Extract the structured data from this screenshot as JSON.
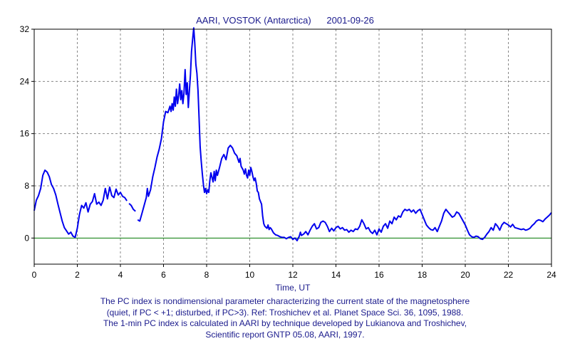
{
  "chart_data": {
    "type": "line",
    "title": "AARI, VOSTOK (Antarctica)      2001-09-26",
    "xlabel": "Time, UT",
    "ylabel": "",
    "xlim": [
      0,
      24
    ],
    "ylim": [
      -4,
      32
    ],
    "x_ticks": [
      "0",
      "2",
      "4",
      "6",
      "8",
      "10",
      "12",
      "14",
      "16",
      "18",
      "20",
      "22",
      "24"
    ],
    "y_ticks": [
      "32",
      "24",
      "16",
      "8",
      "0"
    ],
    "grid": true,
    "line_color": "#0000ee",
    "zero_line_color": "#007700",
    "series": [
      {
        "name": "",
        "segments": [
          [
            [
              0,
              4.2
            ],
            [
              0.1,
              5.8
            ],
            [
              0.2,
              6.5
            ],
            [
              0.3,
              7.6
            ],
            [
              0.4,
              9.6
            ],
            [
              0.5,
              10.4
            ],
            [
              0.6,
              10.1
            ],
            [
              0.7,
              9.4
            ],
            [
              0.8,
              8.2
            ],
            [
              0.9,
              7.6
            ],
            [
              1.0,
              6.6
            ],
            [
              1.1,
              5.2
            ],
            [
              1.2,
              3.9
            ],
            [
              1.3,
              2.6
            ],
            [
              1.4,
              1.6
            ],
            [
              1.5,
              1.1
            ],
            [
              1.6,
              0.6
            ],
            [
              1.7,
              0.9
            ],
            [
              1.8,
              0.3
            ],
            [
              1.9,
              0.1
            ],
            [
              2.0,
              1.5
            ],
            [
              2.1,
              3.6
            ],
            [
              2.2,
              5.0
            ],
            [
              2.3,
              4.6
            ],
            [
              2.4,
              5.4
            ],
            [
              2.5,
              4.0
            ],
            [
              2.6,
              5.2
            ],
            [
              2.7,
              5.6
            ],
            [
              2.8,
              6.8
            ],
            [
              2.9,
              5.2
            ],
            [
              3.0,
              5.5
            ],
            [
              3.1,
              5.0
            ],
            [
              3.2,
              5.8
            ],
            [
              3.3,
              7.6
            ],
            [
              3.4,
              6.0
            ],
            [
              3.5,
              7.8
            ],
            [
              3.6,
              6.5
            ],
            [
              3.7,
              6.2
            ],
            [
              3.8,
              7.5
            ],
            [
              3.9,
              6.6
            ],
            [
              4.0,
              7.0
            ],
            [
              4.1,
              6.4
            ],
            [
              4.2,
              6.2
            ],
            [
              4.3,
              5.7
            ]
          ],
          [
            [
              4.4,
              5.3
            ],
            [
              4.5,
              5.0
            ],
            [
              4.6,
              4.4
            ],
            [
              4.7,
              4.1
            ]
          ],
          [
            [
              4.8,
              2.8
            ],
            [
              4.9,
              2.6
            ],
            [
              5.0,
              3.8
            ],
            [
              5.1,
              5.0
            ],
            [
              5.2,
              6.2
            ],
            [
              5.25,
              7.6
            ],
            [
              5.3,
              6.4
            ],
            [
              5.4,
              7.4
            ],
            [
              5.5,
              9.4
            ],
            [
              5.6,
              10.8
            ],
            [
              5.7,
              12.4
            ],
            [
              5.8,
              13.6
            ],
            [
              5.9,
              15.2
            ],
            [
              6.0,
              17.8
            ],
            [
              6.1,
              19.4
            ],
            [
              6.2,
              19.2
            ],
            [
              6.3,
              20.2
            ],
            [
              6.35,
              19.4
            ],
            [
              6.4,
              20.6
            ],
            [
              6.45,
              19.6
            ],
            [
              6.5,
              21.6
            ],
            [
              6.55,
              20.2
            ],
            [
              6.6,
              22.8
            ],
            [
              6.65,
              20.6
            ],
            [
              6.7,
              21.8
            ],
            [
              6.75,
              23.6
            ],
            [
              6.8,
              21.2
            ],
            [
              6.85,
              22.6
            ],
            [
              6.9,
              20.6
            ],
            [
              6.95,
              22.2
            ],
            [
              7.0,
              25.8
            ],
            [
              7.05,
              22.0
            ],
            [
              7.1,
              23.8
            ],
            [
              7.15,
              20.0
            ],
            [
              7.2,
              22.6
            ],
            [
              7.25,
              25.0
            ],
            [
              7.3,
              28.6
            ],
            [
              7.35,
              30.4
            ],
            [
              7.4,
              32.2
            ],
            [
              7.45,
              29.8
            ],
            [
              7.5,
              26.6
            ],
            [
              7.55,
              25.2
            ],
            [
              7.6,
              22.6
            ],
            [
              7.65,
              18.4
            ],
            [
              7.7,
              14.0
            ],
            [
              7.75,
              11.8
            ],
            [
              7.8,
              9.8
            ],
            [
              7.85,
              8.2
            ],
            [
              7.9,
              7.0
            ],
            [
              7.95,
              7.6
            ],
            [
              8.0,
              6.8
            ],
            [
              8.05,
              7.4
            ],
            [
              8.1,
              7.0
            ],
            [
              8.15,
              8.8
            ],
            [
              8.2,
              10.0
            ],
            [
              8.3,
              8.6
            ],
            [
              8.35,
              10.2
            ],
            [
              8.4,
              8.8
            ],
            [
              8.45,
              10.4
            ],
            [
              8.5,
              9.6
            ],
            [
              8.6,
              10.8
            ],
            [
              8.7,
              12.2
            ],
            [
              8.8,
              12.8
            ],
            [
              8.9,
              12.0
            ],
            [
              9.0,
              13.8
            ],
            [
              9.1,
              14.2
            ],
            [
              9.2,
              13.8
            ],
            [
              9.3,
              13.0
            ],
            [
              9.4,
              12.6
            ],
            [
              9.5,
              11.6
            ],
            [
              9.55,
              12.2
            ],
            [
              9.6,
              11.0
            ],
            [
              9.7,
              10.4
            ],
            [
              9.75,
              9.8
            ],
            [
              9.8,
              10.6
            ],
            [
              9.85,
              9.6
            ],
            [
              9.9,
              9.2
            ],
            [
              9.95,
              10.4
            ],
            [
              10.0,
              9.6
            ],
            [
              10.05,
              10.8
            ],
            [
              10.1,
              10.2
            ],
            [
              10.15,
              9.4
            ],
            [
              10.2,
              8.8
            ],
            [
              10.25,
              9.2
            ],
            [
              10.3,
              8.4
            ],
            [
              10.35,
              7.2
            ],
            [
              10.4,
              7.0
            ],
            [
              10.45,
              6.0
            ],
            [
              10.5,
              5.6
            ],
            [
              10.55,
              5.2
            ],
            [
              10.6,
              3.4
            ],
            [
              10.65,
              2.2
            ],
            [
              10.7,
              1.8
            ],
            [
              10.8,
              1.5
            ],
            [
              10.85,
              2.0
            ],
            [
              10.9,
              1.3
            ],
            [
              10.95,
              1.6
            ],
            [
              11.0,
              1.4
            ],
            [
              11.1,
              0.8
            ],
            [
              11.2,
              0.5
            ],
            [
              11.3,
              0.4
            ],
            [
              11.4,
              0.2
            ],
            [
              11.5,
              0.1
            ],
            [
              11.6,
              0.1
            ],
            [
              11.7,
              -0.1
            ],
            [
              11.8,
              0.1
            ],
            [
              11.9,
              0.2
            ],
            [
              12.0,
              -0.2
            ],
            [
              12.1,
              0.0
            ],
            [
              12.2,
              -0.4
            ],
            [
              12.3,
              0.3
            ],
            [
              12.35,
              0.9
            ],
            [
              12.4,
              0.4
            ],
            [
              12.5,
              0.6
            ],
            [
              12.6,
              1.0
            ],
            [
              12.7,
              0.5
            ],
            [
              12.8,
              1.2
            ],
            [
              12.9,
              1.8
            ],
            [
              13.0,
              2.2
            ],
            [
              13.1,
              1.4
            ],
            [
              13.2,
              1.6
            ],
            [
              13.3,
              2.4
            ],
            [
              13.4,
              2.6
            ],
            [
              13.5,
              2.4
            ],
            [
              13.6,
              1.8
            ],
            [
              13.7,
              1.0
            ],
            [
              13.8,
              1.5
            ],
            [
              13.9,
              1.1
            ],
            [
              14.0,
              1.6
            ],
            [
              14.1,
              1.8
            ],
            [
              14.2,
              1.4
            ],
            [
              14.3,
              1.6
            ],
            [
              14.4,
              1.2
            ],
            [
              14.5,
              1.3
            ],
            [
              14.6,
              0.9
            ],
            [
              14.7,
              1.2
            ],
            [
              14.8,
              1.0
            ],
            [
              14.9,
              1.4
            ],
            [
              15.0,
              1.3
            ],
            [
              15.1,
              1.8
            ],
            [
              15.2,
              2.8
            ],
            [
              15.3,
              2.2
            ],
            [
              15.4,
              1.4
            ],
            [
              15.5,
              1.6
            ],
            [
              15.6,
              1.0
            ],
            [
              15.7,
              0.7
            ],
            [
              15.8,
              1.2
            ],
            [
              15.9,
              0.5
            ],
            [
              16.0,
              1.4
            ],
            [
              16.1,
              0.9
            ],
            [
              16.2,
              1.8
            ],
            [
              16.3,
              2.2
            ],
            [
              16.4,
              1.5
            ],
            [
              16.5,
              2.6
            ],
            [
              16.6,
              2.2
            ],
            [
              16.7,
              3.2
            ],
            [
              16.8,
              2.8
            ],
            [
              16.9,
              3.4
            ],
            [
              17.0,
              3.2
            ],
            [
              17.1,
              4.0
            ],
            [
              17.2,
              4.4
            ],
            [
              17.3,
              4.2
            ],
            [
              17.4,
              4.4
            ],
            [
              17.5,
              4.0
            ],
            [
              17.6,
              4.3
            ],
            [
              17.7,
              3.8
            ],
            [
              17.8,
              4.2
            ],
            [
              17.9,
              4.4
            ],
            [
              18.0,
              3.6
            ],
            [
              18.1,
              2.8
            ],
            [
              18.2,
              2.0
            ],
            [
              18.3,
              1.6
            ],
            [
              18.4,
              1.3
            ],
            [
              18.5,
              1.2
            ],
            [
              18.6,
              1.6
            ],
            [
              18.7,
              1.0
            ],
            [
              18.8,
              1.8
            ],
            [
              18.9,
              2.6
            ],
            [
              19.0,
              3.8
            ],
            [
              19.1,
              4.4
            ],
            [
              19.2,
              4.0
            ],
            [
              19.3,
              3.6
            ],
            [
              19.4,
              3.2
            ],
            [
              19.5,
              3.4
            ],
            [
              19.6,
              4.0
            ],
            [
              19.7,
              3.8
            ],
            [
              19.8,
              3.2
            ],
            [
              19.9,
              2.6
            ],
            [
              20.0,
              2.0
            ],
            [
              20.1,
              1.2
            ],
            [
              20.2,
              0.5
            ],
            [
              20.3,
              0.2
            ],
            [
              20.4,
              0.1
            ],
            [
              20.5,
              0.3
            ],
            [
              20.6,
              0.2
            ],
            [
              20.7,
              -0.1
            ],
            [
              20.8,
              -0.2
            ],
            [
              20.9,
              0.1
            ],
            [
              21.0,
              0.6
            ],
            [
              21.1,
              1.0
            ],
            [
              21.2,
              1.6
            ],
            [
              21.3,
              1.2
            ],
            [
              21.4,
              2.2
            ],
            [
              21.5,
              1.8
            ],
            [
              21.6,
              1.2
            ],
            [
              21.7,
              2.0
            ],
            [
              21.8,
              2.4
            ],
            [
              21.9,
              2.2
            ],
            [
              22.0,
              2.0
            ],
            [
              22.1,
              1.7
            ],
            [
              22.2,
              2.1
            ],
            [
              22.3,
              1.6
            ],
            [
              22.4,
              1.5
            ],
            [
              22.5,
              1.4
            ],
            [
              22.6,
              1.3
            ],
            [
              22.7,
              1.4
            ],
            [
              22.8,
              1.2
            ],
            [
              22.9,
              1.3
            ],
            [
              23.0,
              1.5
            ],
            [
              23.1,
              1.9
            ],
            [
              23.2,
              2.2
            ],
            [
              23.3,
              2.6
            ],
            [
              23.4,
              2.8
            ],
            [
              23.5,
              2.7
            ],
            [
              23.6,
              2.5
            ],
            [
              23.7,
              2.9
            ],
            [
              23.8,
              3.2
            ],
            [
              23.9,
              3.5
            ],
            [
              24.0,
              3.9
            ]
          ]
        ]
      }
    ]
  },
  "caption": {
    "lines": [
      "The PC index is nondimensional parameter characterizing the current state of the magnetosphere",
      "(quiet, if PC < +1; disturbed, if PC>3).  Ref: Troshichev et al. Planet Space Sci. 36, 1095, 1988.",
      "The 1-min PC index is calculated in AARI by technique developed by Lukianova and Troshichev,",
      "Scientific report GNTP 05.08, AARI, 1997."
    ]
  }
}
